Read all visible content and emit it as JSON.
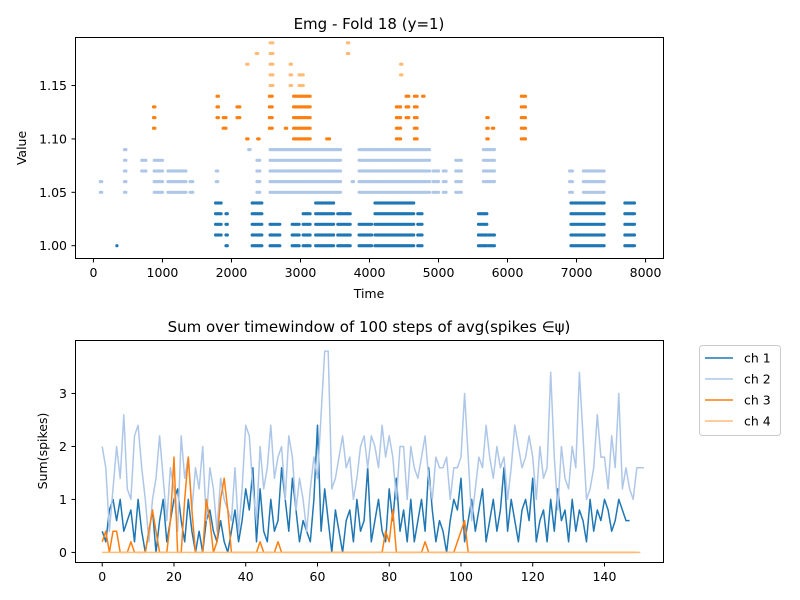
{
  "colors": {
    "ch1": "#1f77b4",
    "ch2": "#aec7e8",
    "ch3": "#ff7f0e",
    "ch4": "#ffbb78"
  },
  "chart_data": [
    {
      "type": "scatter",
      "title": "Emg - Fold 18 (y=1)",
      "xlabel": "Time",
      "ylabel": "Value",
      "xlim": [
        -260,
        8260
      ],
      "ylim": [
        0.988,
        1.195
      ],
      "xticks": [
        0,
        1000,
        2000,
        3000,
        4000,
        5000,
        6000,
        7000,
        8000
      ],
      "yticks": [
        1.0,
        1.05,
        1.1,
        1.15
      ],
      "ytick_labels": [
        "1.00",
        "1.05",
        "1.10",
        "1.15"
      ],
      "series": [
        {
          "color_key": "ch1",
          "clusters": [
            [
              340,
              340,
              0,
              0
            ],
            [
              1770,
              1850,
              1,
              4
            ],
            [
              1920,
              1950,
              0,
              3
            ],
            [
              2300,
              2440,
              0,
              4
            ],
            [
              2560,
              2700,
              0,
              2
            ],
            [
              2880,
              2980,
              0,
              2
            ],
            [
              3040,
              3140,
              0,
              3
            ],
            [
              3220,
              3490,
              0,
              4
            ],
            [
              3540,
              3720,
              0,
              3
            ],
            [
              3850,
              4040,
              0,
              2
            ],
            [
              4080,
              4650,
              0,
              4
            ],
            [
              4700,
              4760,
              0,
              3
            ],
            [
              5580,
              5700,
              0,
              3
            ],
            [
              5730,
              5820,
              0,
              1
            ],
            [
              6920,
              7410,
              0,
              4
            ],
            [
              7700,
              7850,
              0,
              4
            ]
          ]
        },
        {
          "color_key": "ch2",
          "clusters": [
            [
              100,
              130,
              5,
              6
            ],
            [
              450,
              480,
              5,
              9
            ],
            [
              700,
              760,
              7,
              8
            ],
            [
              880,
              1000,
              5,
              8
            ],
            [
              1080,
              1350,
              5,
              7
            ],
            [
              1400,
              1450,
              5,
              6
            ],
            [
              1780,
              1800,
              6,
              7
            ],
            [
              2250,
              2280,
              9,
              9
            ],
            [
              2370,
              2420,
              5,
              8
            ],
            [
              2560,
              3590,
              5,
              9
            ],
            [
              3750,
              3770,
              6,
              6
            ],
            [
              3850,
              4870,
              5,
              9
            ],
            [
              4920,
              5000,
              5,
              7
            ],
            [
              5070,
              5120,
              5,
              7
            ],
            [
              5250,
              5330,
              5,
              8
            ],
            [
              5650,
              5820,
              6,
              9
            ],
            [
              6900,
              6950,
              5,
              7
            ],
            [
              7100,
              7410,
              5,
              7
            ]
          ]
        },
        {
          "color_key": "ch3",
          "clusters": [
            [
              870,
              890,
              11,
              13
            ],
            [
              1790,
              1820,
              12,
              14
            ],
            [
              1880,
              1920,
              11,
              12
            ],
            [
              2080,
              2120,
              12,
              13
            ],
            [
              2220,
              2240,
              10,
              10
            ],
            [
              2380,
              2400,
              10,
              10
            ],
            [
              2550,
              2600,
              11,
              14
            ],
            [
              2780,
              2800,
              11,
              11
            ],
            [
              2900,
              3150,
              10,
              14
            ],
            [
              3380,
              3420,
              10,
              10
            ],
            [
              4390,
              4450,
              10,
              13
            ],
            [
              4530,
              4570,
              12,
              14
            ],
            [
              4650,
              4700,
              10,
              14
            ],
            [
              4770,
              4800,
              14,
              14
            ],
            [
              5700,
              5720,
              10,
              12
            ],
            [
              5780,
              5800,
              11,
              11
            ],
            [
              6200,
              6260,
              10,
              14
            ]
          ]
        },
        {
          "color_key": "ch4",
          "clusters": [
            [
              2220,
              2240,
              17,
              17
            ],
            [
              2360,
              2380,
              18,
              18
            ],
            [
              2560,
              2600,
              15,
              19
            ],
            [
              2850,
              2870,
              15,
              17
            ],
            [
              2980,
              3050,
              15,
              16
            ],
            [
              3680,
              3700,
              18,
              19
            ],
            [
              4450,
              4480,
              16,
              17
            ]
          ]
        }
      ]
    },
    {
      "type": "line",
      "title": "Sum over timewindow of 100 steps of avg(spikes ∈ψ)",
      "xlabel": "",
      "ylabel": "Sum(spikes)",
      "xlim": [
        -7.45,
        156.45
      ],
      "ylim": [
        -0.19,
        4.0
      ],
      "xticks": [
        0,
        20,
        40,
        60,
        80,
        100,
        120,
        140
      ],
      "yticks": [
        0,
        1,
        2,
        3
      ],
      "legend_position": "outside-right",
      "series": [
        {
          "name": "ch 1",
          "color_key": "ch1",
          "values": [
            0.4,
            0.2,
            0.8,
            1.0,
            0.6,
            1.0,
            0.4,
            0.6,
            0.8,
            0.2,
            1.0,
            0.4,
            0,
            0.4,
            0.8,
            0,
            0.6,
            1.0,
            0.2,
            0.6,
            1.0,
            1.2,
            0.6,
            0.2,
            1.0,
            0.4,
            0,
            0.4,
            0,
            0.6,
            0.8,
            0.4,
            0.2,
            0.6,
            0.2,
            0,
            0.4,
            0.8,
            0.2,
            0.6,
            1.2,
            0.8,
            1.6,
            0.2,
            1.2,
            0.4,
            0.2,
            1.0,
            0.4,
            0.6,
            1.6,
            1.0,
            0.4,
            1.4,
            0.8,
            0.2,
            0.6,
            0.4,
            0.2,
            1.0,
            2.4,
            0.4,
            1.2,
            0.6,
            0,
            0.8,
            0.4,
            0,
            0.6,
            0.8,
            0.2,
            1.0,
            0.4,
            0.6,
            1.6,
            0.2,
            0.6,
            1.0,
            0.4,
            0.2,
            1.2,
            0.6,
            1.4,
            0.4,
            0.8,
            0.2,
            1.0,
            0.2,
            0.6,
            1.0,
            0.4,
            1.6,
            0.8,
            0.2,
            0.6,
            0.4,
            0,
            0.6,
            1.0,
            0.8,
            1.4,
            0.2,
            0.6,
            1.0,
            0.4,
            0.8,
            1.2,
            0.2,
            0.6,
            1.0,
            0.4,
            0.8,
            1.6,
            0.4,
            1.0,
            0.6,
            0.2,
            0.8,
            1.0,
            0.6,
            1.4,
            0.2,
            0.6,
            0.8,
            0.2,
            1.0,
            0.4,
            1.2,
            0.6,
            0.8,
            0.2,
            1.0,
            0.4,
            0.8,
            0.6,
            0.2,
            1.0,
            0.4,
            0.8,
            0.6,
            1.0,
            0.8,
            0.4,
            0.6,
            1.0,
            0.8,
            0.6,
            0.6
          ]
        },
        {
          "name": "ch 2",
          "color_key": "ch2",
          "values": [
            2.0,
            1.6,
            0.4,
            1.2,
            2.0,
            1.4,
            2.6,
            1.2,
            1.0,
            2.2,
            2.4,
            1.6,
            1.0,
            0.2,
            1.0,
            1.4,
            2.2,
            1.4,
            0.6,
            1.6,
            1.2,
            0.4,
            2.2,
            1.4,
            1.8,
            0.8,
            1.6,
            1.2,
            2.0,
            0.6,
            1.6,
            1.2,
            0.4,
            1.4,
            1.0,
            0.8,
            0.6,
            1.6,
            0.4,
            1.2,
            2.4,
            2.2,
            1.2,
            0.6,
            2.0,
            1.2,
            1.6,
            2.4,
            1.4,
            1.8,
            2.0,
            1.0,
            2.2,
            1.8,
            0.8,
            1.4,
            1.0,
            0.4,
            1.2,
            1.8,
            1.4,
            2.6,
            3.8,
            3.8,
            1.2,
            1.4,
            1.8,
            2.2,
            1.6,
            1.8,
            1.0,
            1.4,
            2.0,
            2.2,
            1.6,
            2.2,
            2.0,
            1.6,
            2.4,
            1.8,
            2.2,
            1.8,
            1.0,
            2.0,
            2.0,
            1.0,
            2.0,
            1.6,
            1.4,
            1.8,
            2.2,
            1.4,
            1.0,
            1.8,
            1.6,
            1.6,
            1.8,
            1.0,
            1.6,
            1.6,
            1.8,
            3.0,
            1.8,
            0.6,
            1.2,
            1.8,
            1.6,
            2.4,
            1.8,
            1.4,
            2.0,
            1.6,
            1.8,
            1.0,
            1.6,
            2.4,
            2.0,
            1.6,
            1.8,
            2.2,
            1.8,
            1.0,
            2.0,
            1.4,
            1.6,
            3.4,
            1.8,
            0.8,
            2.0,
            1.4,
            1.2,
            2.0,
            1.6,
            3.4,
            2.2,
            1.0,
            1.2,
            1.6,
            2.6,
            1.8,
            1.8,
            1.2,
            2.2,
            1.6,
            3.0,
            1.2,
            1.6,
            1.2,
            1.0,
            1.6,
            1.6,
            1.6
          ]
        },
        {
          "name": "ch 3",
          "color_key": "ch3",
          "values": [
            0.2,
            0.4,
            0,
            0.4,
            0.4,
            0,
            0,
            0,
            0.2,
            0,
            0,
            0,
            0,
            0.4,
            0.8,
            0.4,
            0,
            0,
            0,
            0.6,
            1.8,
            0,
            0,
            1.0,
            1.8,
            0.8,
            0,
            0,
            0,
            1.0,
            0.6,
            0,
            0.2,
            1.0,
            1.4,
            0.8,
            0,
            0,
            0,
            0,
            0,
            0,
            0,
            0,
            0.2,
            0,
            0,
            0,
            0,
            0.2,
            0,
            0,
            0,
            0,
            0,
            0,
            0,
            0,
            0,
            0,
            0,
            0,
            0,
            0,
            0,
            0,
            0,
            0,
            0,
            0,
            0,
            0,
            0,
            0,
            0,
            0,
            0,
            0,
            0,
            0.4,
            0.2,
            0.8,
            0,
            0,
            0,
            0,
            0,
            0,
            0,
            0,
            0.2,
            0,
            0,
            0,
            0,
            0,
            0,
            0,
            0,
            0.2,
            0.4,
            0.6,
            0,
            0,
            0,
            0,
            0,
            0,
            0,
            0,
            0,
            0,
            0,
            0,
            0,
            0,
            0,
            0,
            0,
            0,
            0,
            0,
            0,
            0,
            0,
            0,
            0,
            0,
            0,
            0,
            0,
            0,
            0,
            0,
            0,
            0,
            0,
            0,
            0,
            0,
            0,
            0,
            0,
            0,
            0,
            0,
            0,
            0,
            0,
            0
          ]
        },
        {
          "name": "ch 4",
          "color_key": "ch4",
          "values": [
            0,
            0,
            0,
            0,
            0,
            0,
            0,
            0,
            0,
            0,
            0,
            0,
            0,
            0,
            0,
            0,
            0,
            0,
            0,
            0,
            0,
            0,
            0,
            0,
            0,
            0,
            0,
            0,
            0,
            0,
            0,
            0,
            0,
            0,
            0,
            0,
            0,
            0,
            0,
            0,
            0,
            0,
            0,
            0,
            0,
            0,
            0,
            0,
            0,
            0,
            0,
            0,
            0,
            0,
            0,
            0,
            0,
            0,
            0,
            0,
            0,
            0,
            0,
            0,
            0,
            0,
            0,
            0,
            0,
            0,
            0,
            0,
            0,
            0,
            0,
            0,
            0,
            0,
            0,
            0,
            0,
            0,
            0,
            0,
            0,
            0,
            0,
            0,
            0,
            0,
            0,
            0,
            0,
            0,
            0,
            0,
            0,
            0,
            0,
            0,
            0,
            0,
            0,
            0,
            0,
            0,
            0,
            0,
            0,
            0,
            0,
            0,
            0,
            0,
            0,
            0,
            0,
            0,
            0,
            0,
            0,
            0,
            0,
            0,
            0,
            0,
            0,
            0,
            0,
            0,
            0,
            0,
            0,
            0,
            0,
            0,
            0,
            0,
            0,
            0,
            0,
            0,
            0,
            0,
            0,
            0,
            0,
            0,
            0,
            0,
            0
          ]
        }
      ]
    }
  ]
}
